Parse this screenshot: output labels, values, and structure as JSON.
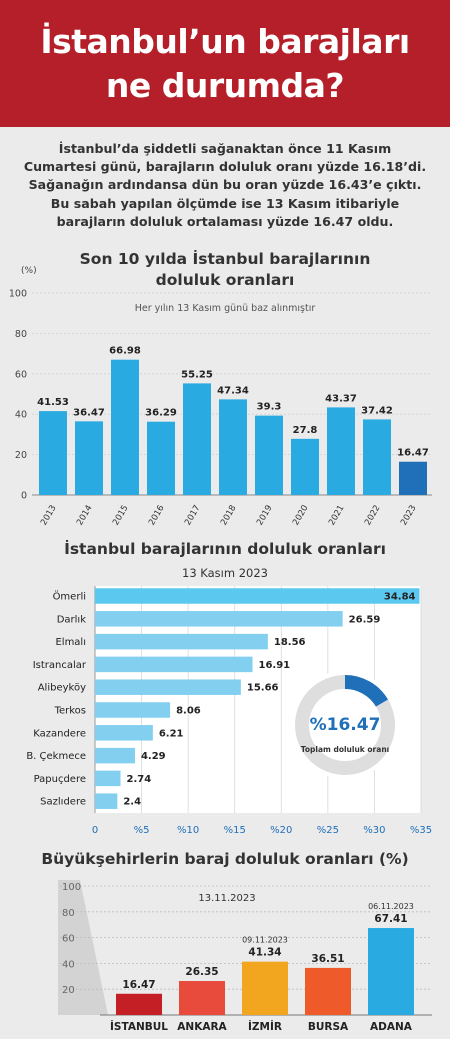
{
  "header": {
    "line1": "İstanbul’un barajları",
    "line2": "ne durumda?"
  },
  "intro": {
    "lines": [
      "İstanbul’da şiddetli sağanaktan önce 11 Kasım",
      "Cumartesi günü, barajların doluluk oranı yüzde 16.18’di.",
      "Sağanağın ardındansa dün bu oran yüzde 16.43’e çıktı.",
      "Bu sabah yapılan ölçümde ise 13 Kasım itibariyle",
      "barajların doluluk ortalaması yüzde 16.47 oldu."
    ]
  },
  "chart_data": [
    {
      "type": "bar",
      "title_line1": "Son 10 yılda İstanbul barajlarının",
      "title_line2": "doluluk oranları",
      "subtitle": "Her yılın 13 Kasım günü baz alınmıştır",
      "ylabel": "(%)",
      "ylim": [
        0,
        100
      ],
      "yticks": [
        0,
        20,
        40,
        60,
        80,
        100
      ],
      "categories": [
        "2013",
        "2014",
        "2015",
        "2016",
        "2017",
        "2018",
        "2019",
        "2020",
        "2021",
        "2022",
        "2023"
      ],
      "values": [
        41.53,
        36.47,
        66.98,
        36.29,
        55.25,
        47.34,
        39.3,
        27.8,
        43.37,
        37.42,
        16.47
      ],
      "value_labels": [
        "41.53",
        "36.47",
        "66.98",
        "36.29",
        "55.25",
        "47.34",
        "39.3",
        "27.8",
        "43.37",
        "37.42",
        "16.47"
      ],
      "colors": {
        "bar": "#29abe2",
        "highlight": "#1f6fb9"
      }
    },
    {
      "type": "bar",
      "orientation": "horizontal",
      "title": "İstanbul barajlarının doluluk oranları",
      "subtitle": "13 Kasım 2023",
      "categories": [
        "Ömerli",
        "Darlık",
        "Elmalı",
        "Istrancalar",
        "Alibeyköy",
        "Terkos",
        "Kazandere",
        "B. Çekmece",
        "Papuçdere",
        "Sazlıdere"
      ],
      "values": [
        34.84,
        26.59,
        18.56,
        16.91,
        15.66,
        8.06,
        6.21,
        4.29,
        2.74,
        2.4
      ],
      "value_labels": [
        "34.84",
        "26.59",
        "18.56",
        "16.91",
        "15.66",
        "8.06",
        "6.21",
        "4.29",
        "2.74",
        "2.4"
      ],
      "xlim": [
        0,
        35
      ],
      "xtick_labels": [
        "0",
        "%5",
        "%10",
        "%15",
        "%20",
        "%25",
        "%30",
        "%35"
      ],
      "xticks": [
        0,
        5,
        10,
        15,
        20,
        25,
        30,
        35
      ],
      "donut": {
        "value": 16.47,
        "label": "%16.47",
        "caption": "Toplam doluluk oranı"
      },
      "colors": {
        "top": "#5bc8f0",
        "rest": "#82cfef",
        "accent": "#1f6fb9"
      }
    },
    {
      "type": "bar",
      "title": "Büyükşehirlerin baraj doluluk oranları (%)",
      "ylim": [
        0,
        100
      ],
      "yticks": [
        20,
        40,
        60,
        80,
        100
      ],
      "categories": [
        "İSTANBUL",
        "ANKARA",
        "İZMİR",
        "BURSA",
        "ADANA"
      ],
      "values": [
        16.47,
        26.35,
        41.34,
        36.51,
        67.41
      ],
      "value_labels": [
        "16.47",
        "26.35",
        "41.34",
        "36.51",
        "67.41"
      ],
      "date_labels": [
        "",
        "",
        "09.11.2023",
        "",
        "06.11.2023"
      ],
      "common_date": "13.11.2023",
      "colors": [
        "#c51f26",
        "#e84a3c",
        "#f2a51f",
        "#ee5a2a",
        "#29abe2"
      ]
    }
  ]
}
